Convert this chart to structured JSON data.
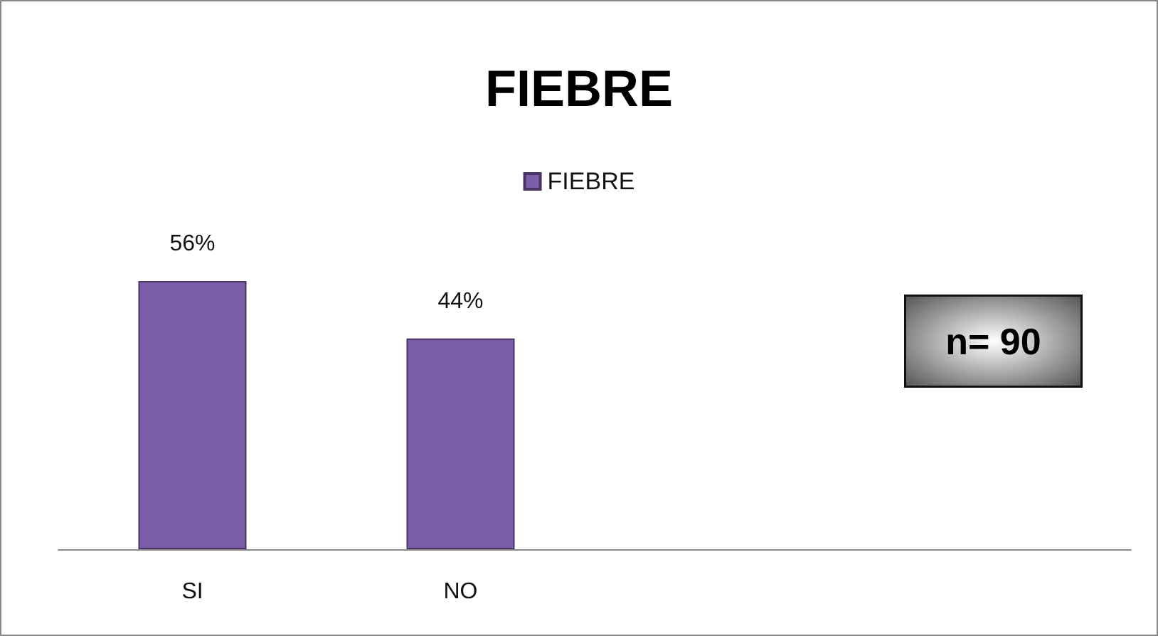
{
  "chart_data": {
    "type": "bar",
    "title": "FIEBRE",
    "categories": [
      "SI",
      "NO",
      null,
      null
    ],
    "series": [
      {
        "name": "FIEBRE",
        "color": "#7b5ea7",
        "values": [
          56,
          44,
          null,
          null
        ],
        "value_labels": [
          "56%",
          "44%",
          null,
          null
        ]
      }
    ],
    "annotations": [
      "n= 90"
    ],
    "legend": "top"
  }
}
